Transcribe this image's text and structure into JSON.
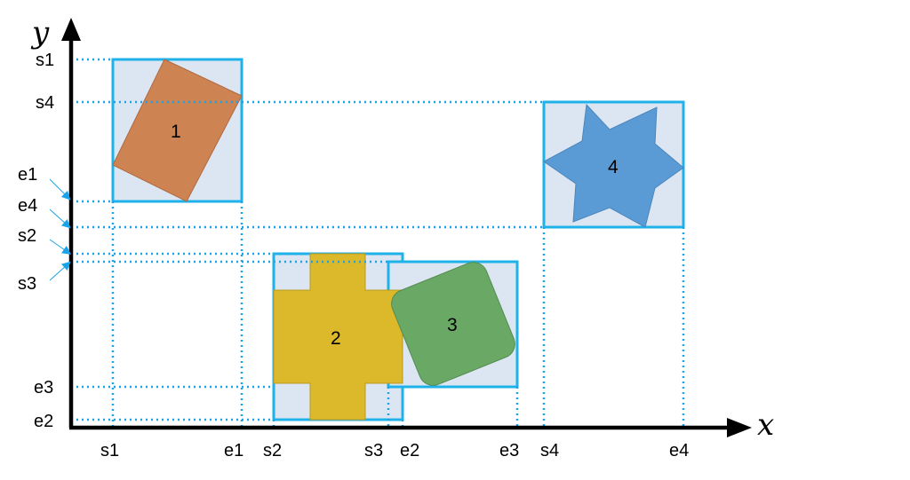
{
  "axes": {
    "x_title": "x",
    "y_title": "y"
  },
  "x_ticks": [
    "s1",
    "e1",
    "s2",
    "s3",
    "e2",
    "e3",
    "s4",
    "e4"
  ],
  "y_ticks": [
    "s1",
    "s4",
    "e1",
    "e4",
    "s2",
    "s3",
    "e3",
    "e2"
  ],
  "objects": [
    {
      "id": "1",
      "shape": "rotated-rectangle",
      "color": "#cd8352"
    },
    {
      "id": "2",
      "shape": "cross",
      "color": "#dcb82b"
    },
    {
      "id": "3",
      "shape": "rounded-square",
      "color": "#6aa865"
    },
    {
      "id": "4",
      "shape": "six-point-star",
      "color": "#5b9bd5"
    }
  ],
  "colors": {
    "box_fill": "#dce6f2",
    "box_stroke": "#1fb1ea",
    "guide": "#1aa3e8",
    "axis": "#000000"
  }
}
